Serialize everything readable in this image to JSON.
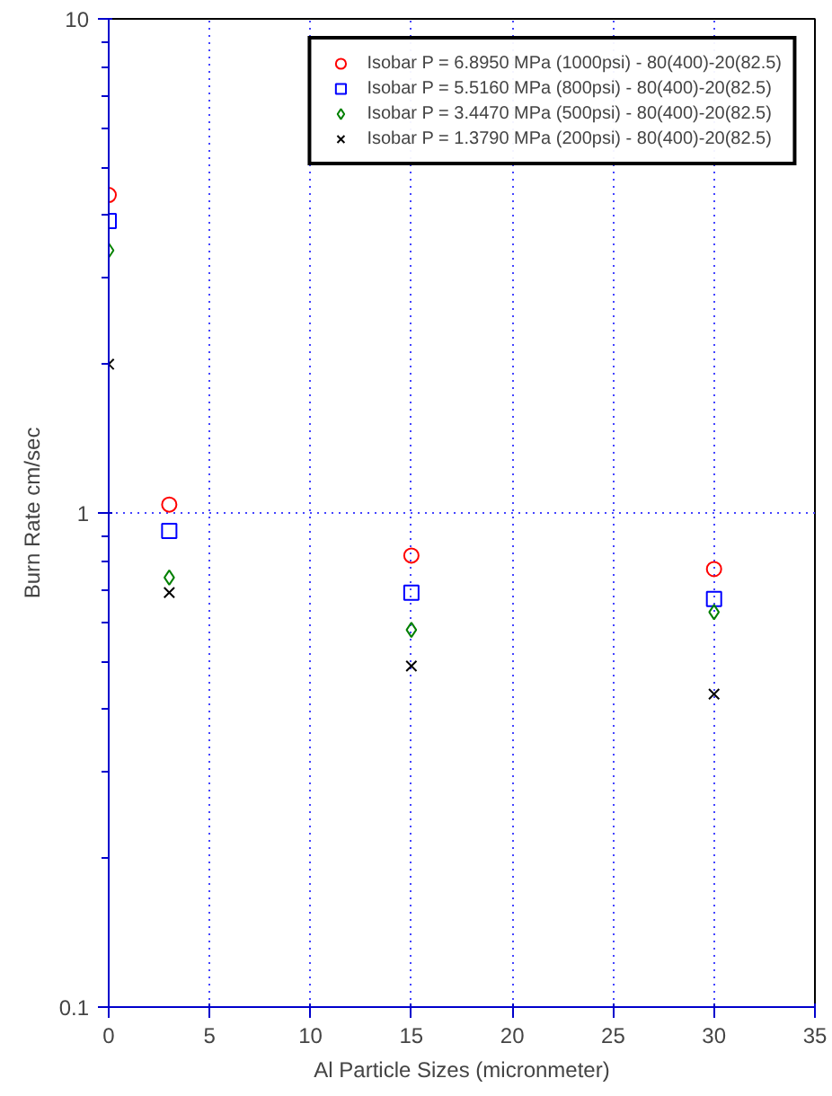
{
  "chart_data": {
    "type": "scatter",
    "xlabel": "Al Particle Sizes (micronmeter)",
    "ylabel": "Burn Rate cm/sec",
    "x": [
      0,
      3,
      15,
      30
    ],
    "log": "y",
    "xlim": [
      0,
      35
    ],
    "xticks": [
      0,
      5,
      10,
      15,
      20,
      25,
      30,
      35
    ],
    "ylim": [
      0.1,
      10
    ],
    "yticks": [
      0.1,
      1,
      10
    ],
    "grid": true,
    "legend": "top right",
    "series": [
      {
        "name": "Isobar P = 6.8950 MPa (1000psi) - 80(400)-20(82.5)",
        "color": "#ff0000",
        "marker": "circle",
        "values": [
          4.4,
          1.04,
          0.82,
          0.77
        ]
      },
      {
        "name": "Isobar P = 5.5160 MPa (800psi) - 80(400)-20(82.5)",
        "color": "#0000ff",
        "marker": "square",
        "values": [
          3.9,
          0.92,
          0.69,
          0.67
        ]
      },
      {
        "name": "Isobar P = 3.4470 MPa (500psi) - 80(400)-20(82.5)",
        "color": "#008000",
        "marker": "diamond",
        "values": [
          3.4,
          0.74,
          0.58,
          0.63
        ]
      },
      {
        "name": "Isobar P = 1.3790 MPa (200psi) - 80(400)-20(82.5)",
        "color": "#000000",
        "marker": "cross",
        "values": [
          2.0,
          0.69,
          0.49,
          0.43
        ]
      }
    ]
  }
}
